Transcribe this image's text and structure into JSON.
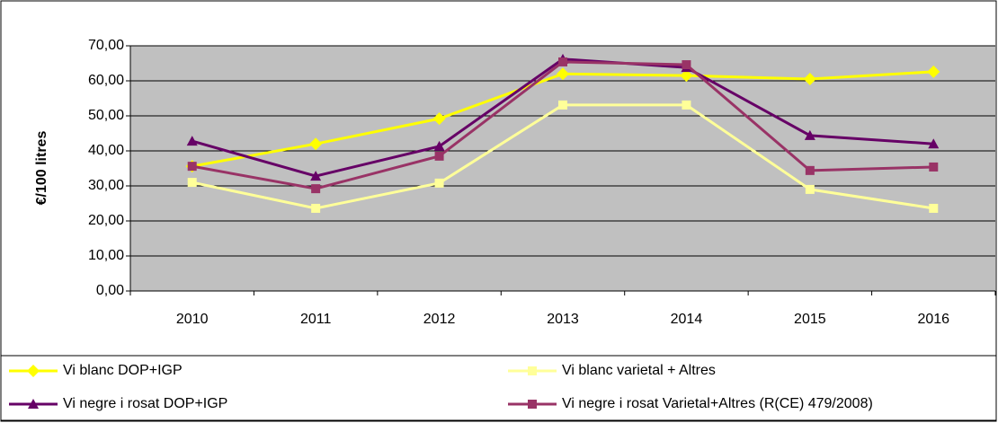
{
  "chart_data": {
    "type": "line",
    "y_label": "€/100 litres",
    "categories": [
      "2010",
      "2011",
      "2012",
      "2013",
      "2014",
      "2015",
      "2016"
    ],
    "series": [
      {
        "name": "Vi blanc DOP+IGP",
        "color": "#ffff00",
        "marker": "diamond",
        "values": [
          35.6,
          42.0,
          49.2,
          62.0,
          61.5,
          60.5,
          62.6
        ]
      },
      {
        "name": "Vi blanc varietal + Altres",
        "color": "#ffff99",
        "marker": "square",
        "values": [
          31.0,
          23.6,
          30.8,
          53.1,
          53.1,
          29.0,
          23.6
        ]
      },
      {
        "name": "Vi negre i rosat DOP+IGP",
        "color": "#660066",
        "marker": "triangle",
        "values": [
          42.8,
          32.8,
          41.3,
          66.2,
          63.8,
          44.4,
          42.0
        ]
      },
      {
        "name": "Vi negre i rosat Varietal+Altres (R(CE) 479/2008)",
        "color": "#993366",
        "marker": "square",
        "values": [
          35.6,
          29.2,
          38.5,
          65.4,
          64.6,
          34.4,
          35.4
        ]
      }
    ],
    "ylim": [
      0,
      70
    ],
    "yticks": [
      {
        "value": 0,
        "label": "0,00"
      },
      {
        "value": 10,
        "label": "10,00"
      },
      {
        "value": 20,
        "label": "20,00"
      },
      {
        "value": 30,
        "label": "30,00"
      },
      {
        "value": 40,
        "label": "40,00"
      },
      {
        "value": 50,
        "label": "50,00"
      },
      {
        "value": 60,
        "label": "60,00"
      },
      {
        "value": 70,
        "label": "70,00"
      }
    ],
    "grid": true,
    "plot_background": "#c0c0c0",
    "legend": "bottom"
  }
}
